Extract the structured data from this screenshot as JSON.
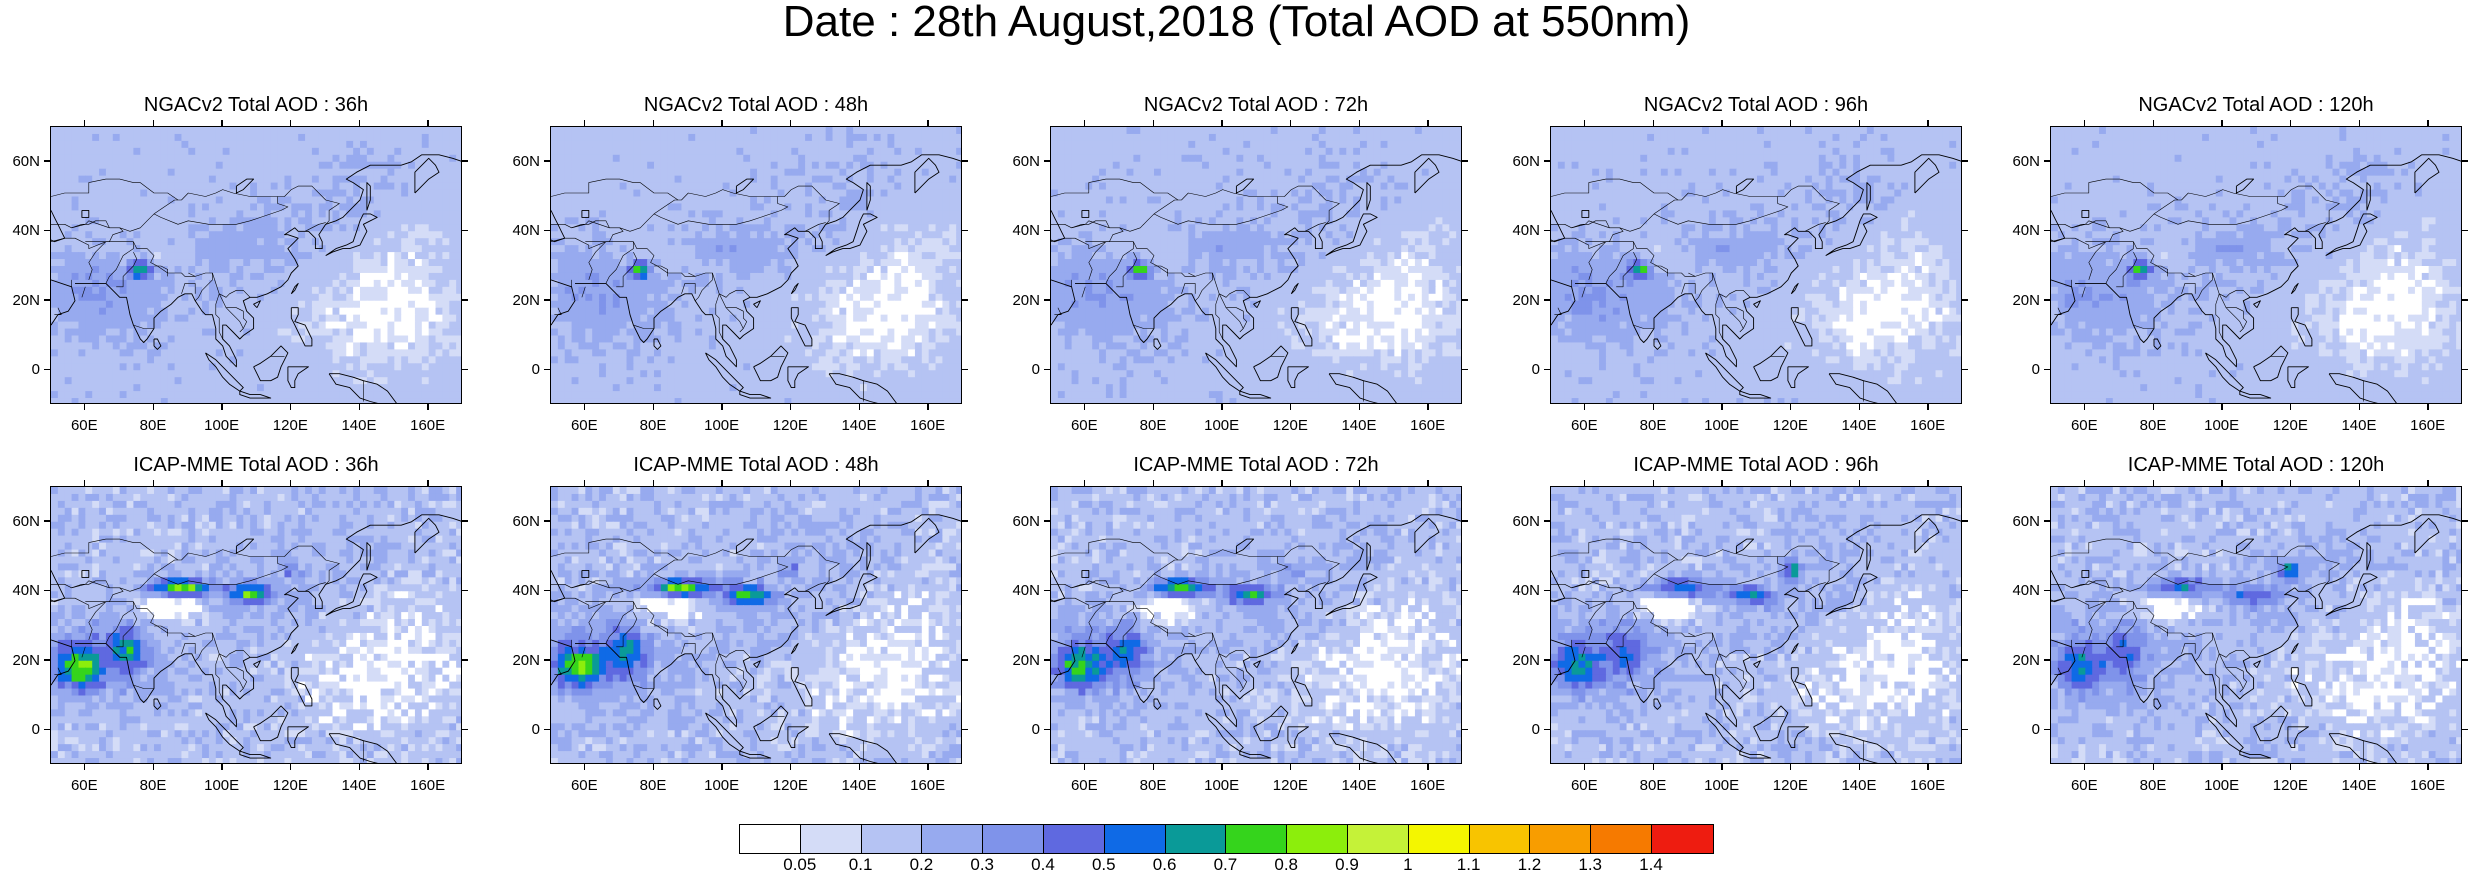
{
  "title": "Date : 28th August,2018 (Total AOD at 550nm)",
  "rows": [
    {
      "model": "NGACv2",
      "panels": [
        {
          "title": "NGACv2 Total AOD : 36h",
          "lead": "36h"
        },
        {
          "title": "NGACv2 Total AOD : 48h",
          "lead": "48h"
        },
        {
          "title": "NGACv2 Total AOD : 72h",
          "lead": "72h"
        },
        {
          "title": "NGACv2 Total AOD : 96h",
          "lead": "96h"
        },
        {
          "title": "NGACv2 Total AOD : 120h",
          "lead": "120h"
        }
      ]
    },
    {
      "model": "ICAP-MME",
      "panels": [
        {
          "title": "ICAP-MME Total AOD : 36h",
          "lead": "36h"
        },
        {
          "title": "ICAP-MME Total AOD : 48h",
          "lead": "48h"
        },
        {
          "title": "ICAP-MME Total AOD : 72h",
          "lead": "72h"
        },
        {
          "title": "ICAP-MME Total AOD : 96h",
          "lead": "96h"
        },
        {
          "title": "ICAP-MME Total AOD : 120h",
          "lead": "120h"
        }
      ]
    }
  ],
  "axes": {
    "lat_ticks": [
      "60N",
      "40N",
      "20N",
      "0"
    ],
    "lon_ticks": [
      "60E",
      "80E",
      "100E",
      "120E",
      "140E",
      "160E"
    ],
    "lat_values": [
      60,
      40,
      20,
      0
    ],
    "lon_values": [
      60,
      80,
      100,
      120,
      140,
      160
    ],
    "lat_range": [
      -10,
      70
    ],
    "lon_range": [
      50,
      170
    ]
  },
  "colorbar": {
    "labels": [
      "0.05",
      "0.1",
      "0.2",
      "0.3",
      "0.4",
      "0.5",
      "0.6",
      "0.7",
      "0.8",
      "0.9",
      "1",
      "1.1",
      "1.2",
      "1.3",
      "1.4"
    ],
    "colors": [
      "#ffffff",
      "#d4dcf7",
      "#b5c3f3",
      "#97aaef",
      "#7f93ea",
      "#5f69e0",
      "#0f6ae6",
      "#0a9a98",
      "#35d41c",
      "#8cee0c",
      "#c5f238",
      "#f4f600",
      "#f8c400",
      "#f89d00",
      "#f67a00",
      "#ee1c10"
    ]
  }
}
